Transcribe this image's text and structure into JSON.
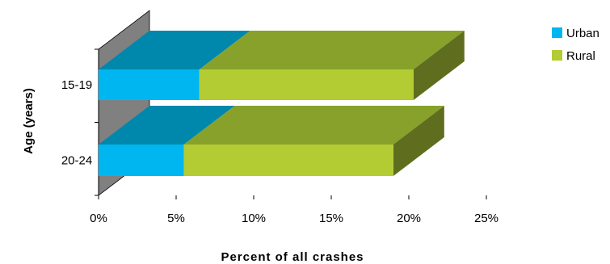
{
  "chart_data": {
    "type": "bar",
    "orientation": "horizontal",
    "stacked": true,
    "style": "3d",
    "categories": [
      "15-19",
      "20-24"
    ],
    "series": [
      {
        "name": "Urban",
        "values": [
          6.5,
          5.5
        ],
        "color": "#00b6f0",
        "top_color": "#0087ac",
        "side_color": "#0087ac"
      },
      {
        "name": "Rural",
        "values": [
          13.8,
          13.5
        ],
        "color": "#b3cc33",
        "top_color": "#87a12a",
        "side_color": "#5e6e1e"
      }
    ],
    "xlabel": "Percent of all crashes",
    "ylabel": "Age (years)",
    "xlim": [
      0,
      25
    ],
    "xticks": [
      "0%",
      "5%",
      "10%",
      "15%",
      "20%",
      "25%"
    ],
    "grid": false,
    "legend_position": "top-right",
    "wall_color": "#808080"
  }
}
